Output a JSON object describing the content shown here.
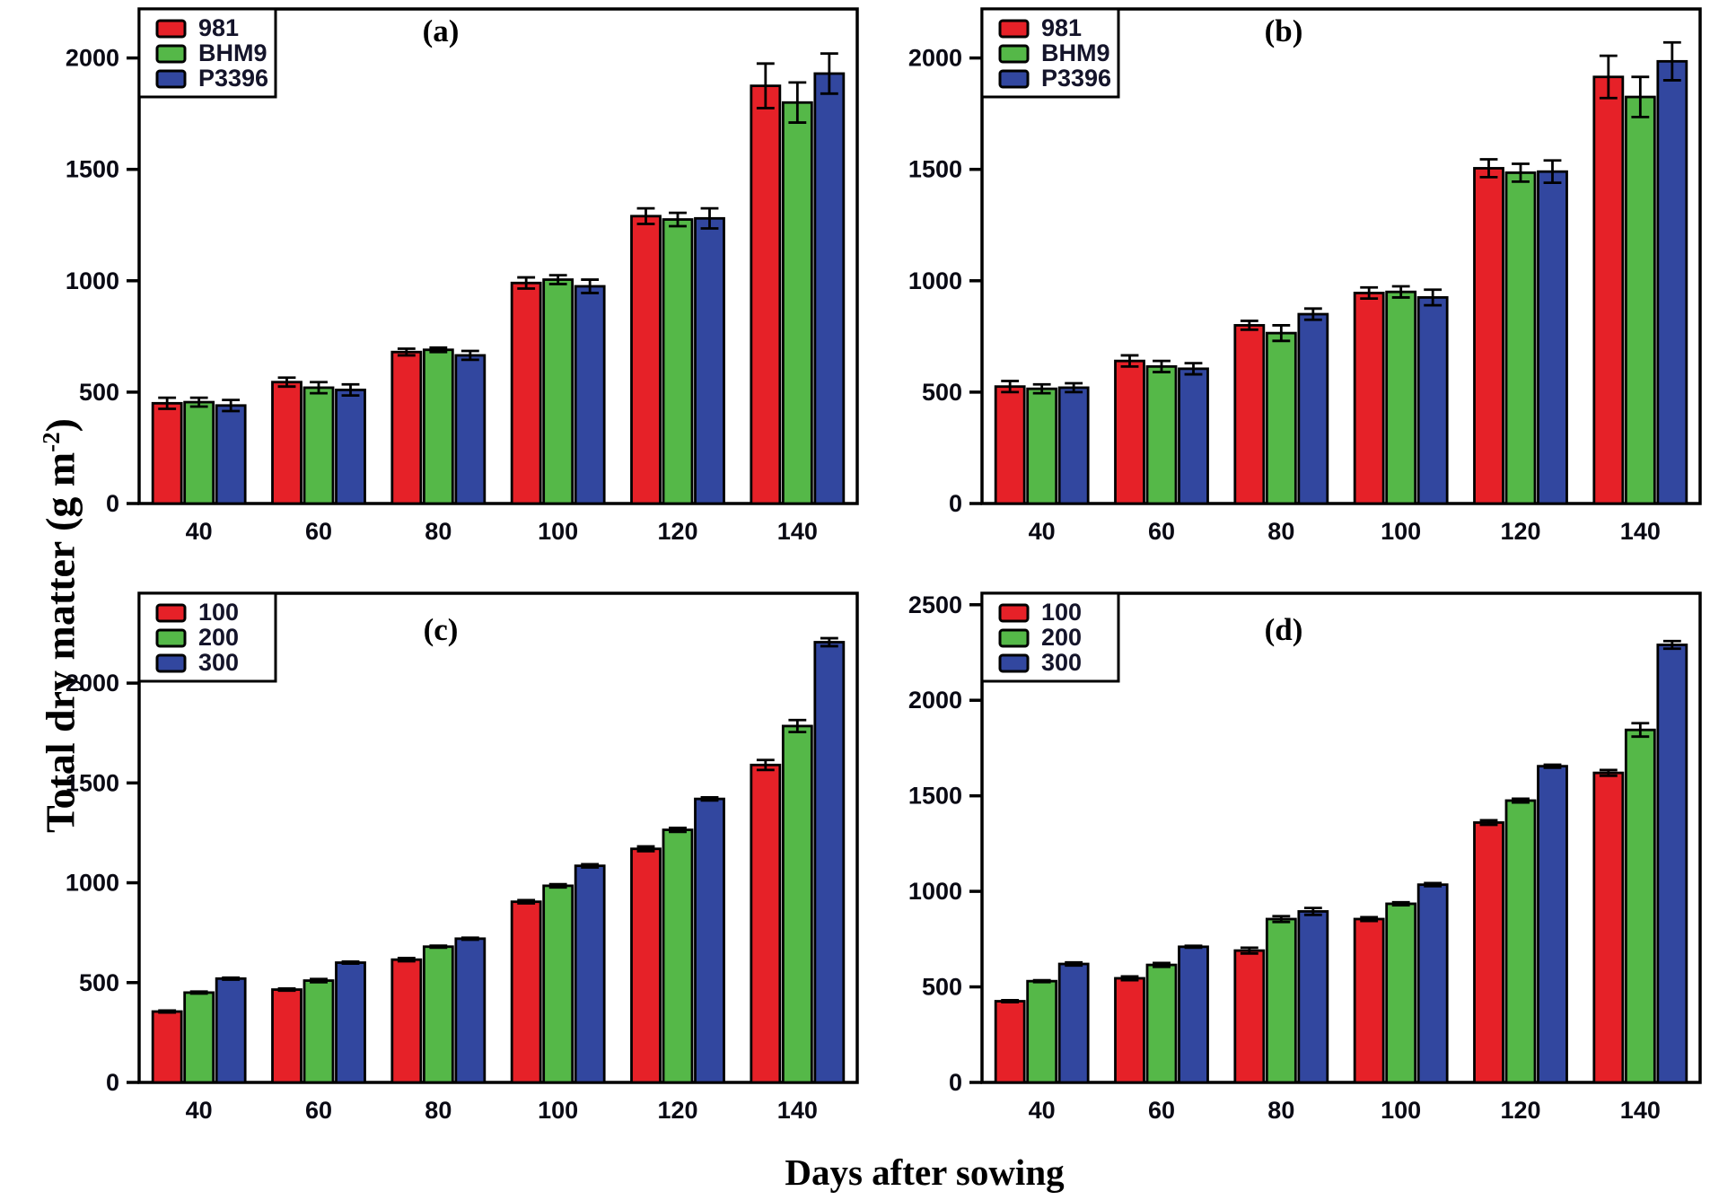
{
  "figure": {
    "y_axis_label_prefix": "Total dry matter (g m",
    "y_axis_label_sup": "-2",
    "y_axis_label_suffix": ")",
    "x_axis_label": "Days after sowing"
  },
  "colors": {
    "red": "#e62128",
    "green": "#55b848",
    "blue": "#32479f",
    "axis": "#000000",
    "background": "#ffffff"
  },
  "chart_data": [
    {
      "id": "a",
      "type": "bar",
      "title": "(a)",
      "categories": [
        "40",
        "60",
        "80",
        "100",
        "120",
        "140"
      ],
      "yticks": [
        0,
        500,
        1000,
        1500,
        2000
      ],
      "ylim": [
        0,
        2220
      ],
      "legend_position": "top-left",
      "grid": false,
      "legend": [
        "981",
        "BHM9",
        "P3396"
      ],
      "series": [
        {
          "name": "981",
          "color": "red",
          "values": [
            450,
            545,
            680,
            990,
            1290,
            1875
          ],
          "errors": [
            25,
            20,
            15,
            25,
            35,
            100
          ]
        },
        {
          "name": "BHM9",
          "color": "green",
          "values": [
            455,
            520,
            690,
            1005,
            1275,
            1800
          ],
          "errors": [
            20,
            25,
            10,
            20,
            30,
            90
          ]
        },
        {
          "name": "P3396",
          "color": "blue",
          "values": [
            440,
            510,
            665,
            975,
            1280,
            1930
          ],
          "errors": [
            25,
            25,
            20,
            30,
            45,
            90
          ]
        }
      ]
    },
    {
      "id": "b",
      "type": "bar",
      "title": "(b)",
      "categories": [
        "40",
        "60",
        "80",
        "100",
        "120",
        "140"
      ],
      "yticks": [
        0,
        500,
        1000,
        1500,
        2000
      ],
      "ylim": [
        0,
        2220
      ],
      "legend_position": "top-left",
      "grid": false,
      "legend": [
        "981",
        "BHM9",
        "P3396"
      ],
      "series": [
        {
          "name": "981",
          "color": "red",
          "values": [
            525,
            640,
            800,
            945,
            1505,
            1915
          ],
          "errors": [
            25,
            25,
            20,
            25,
            40,
            95
          ]
        },
        {
          "name": "BHM9",
          "color": "green",
          "values": [
            515,
            615,
            765,
            950,
            1485,
            1825
          ],
          "errors": [
            20,
            25,
            35,
            25,
            40,
            90
          ]
        },
        {
          "name": "P3396",
          "color": "blue",
          "values": [
            520,
            605,
            850,
            925,
            1490,
            1985
          ],
          "errors": [
            20,
            25,
            25,
            35,
            50,
            85
          ]
        }
      ]
    },
    {
      "id": "c",
      "type": "bar",
      "title": "(c)",
      "categories": [
        "40",
        "60",
        "80",
        "100",
        "120",
        "140"
      ],
      "yticks": [
        0,
        500,
        1000,
        1500,
        2000
      ],
      "ylim": [
        0,
        2450
      ],
      "legend_position": "top-left",
      "grid": false,
      "legend": [
        "100",
        "200",
        "300"
      ],
      "series": [
        {
          "name": "100",
          "color": "red",
          "values": [
            355,
            465,
            615,
            905,
            1170,
            1590
          ],
          "errors": [
            5,
            5,
            8,
            8,
            12,
            25
          ]
        },
        {
          "name": "200",
          "color": "green",
          "values": [
            450,
            510,
            680,
            985,
            1265,
            1785
          ],
          "errors": [
            5,
            8,
            5,
            8,
            10,
            30
          ]
        },
        {
          "name": "300",
          "color": "blue",
          "values": [
            520,
            600,
            720,
            1085,
            1420,
            2205
          ],
          "errors": [
            5,
            5,
            5,
            8,
            8,
            20
          ]
        }
      ]
    },
    {
      "id": "d",
      "type": "bar",
      "title": "(d)",
      "categories": [
        "40",
        "60",
        "80",
        "100",
        "120",
        "140"
      ],
      "yticks": [
        0,
        500,
        1000,
        1500,
        2000,
        2500
      ],
      "ylim": [
        0,
        2560
      ],
      "legend_position": "top-left",
      "grid": false,
      "legend": [
        "100",
        "200",
        "300"
      ],
      "series": [
        {
          "name": "100",
          "color": "red",
          "values": [
            425,
            545,
            690,
            855,
            1360,
            1620
          ],
          "errors": [
            5,
            10,
            15,
            10,
            12,
            15
          ]
        },
        {
          "name": "200",
          "color": "green",
          "values": [
            530,
            615,
            855,
            935,
            1475,
            1845
          ],
          "errors": [
            5,
            10,
            15,
            8,
            10,
            35
          ]
        },
        {
          "name": "300",
          "color": "blue",
          "values": [
            620,
            710,
            895,
            1035,
            1655,
            2290
          ],
          "errors": [
            8,
            5,
            18,
            8,
            8,
            20
          ]
        }
      ]
    }
  ]
}
